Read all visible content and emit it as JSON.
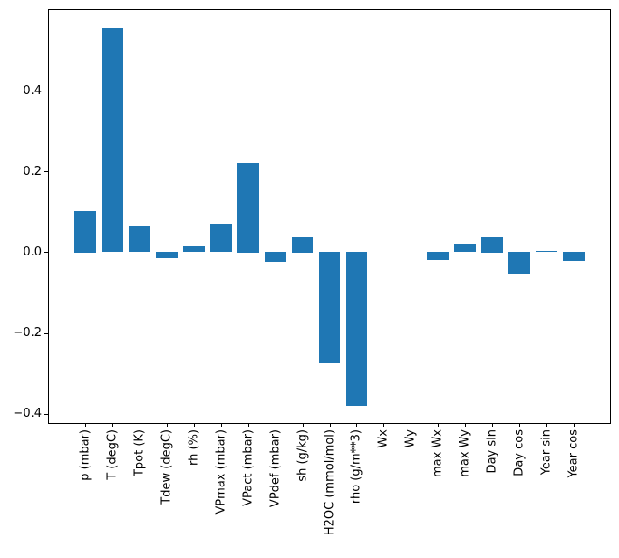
{
  "figure": {
    "background": "#ffffff"
  },
  "chart_data": {
    "type": "bar",
    "title": "",
    "xlabel": "",
    "ylabel": "",
    "categories": [
      "p (mbar)",
      "T (degC)",
      "Tpot (K)",
      "Tdew (degC)",
      "rh (%)",
      "VPmax (mbar)",
      "VPact (mbar)",
      "VPdef (mbar)",
      "sh (g/kg)",
      "H2OC (mmol/mol)",
      "rho (g/m**3)",
      "Wx",
      "Wy",
      "max Wx",
      "max Wy",
      "Day sin",
      "Day cos",
      "Year sin",
      "Year cos"
    ],
    "values": [
      0.102,
      0.555,
      0.066,
      -0.015,
      0.014,
      0.071,
      0.222,
      -0.023,
      0.037,
      -0.275,
      -0.381,
      0.0,
      0.0,
      -0.019,
      0.021,
      0.037,
      -0.055,
      0.003,
      -0.022
    ],
    "bar_color": "#1f77b4",
    "bar_width_units": 0.8,
    "xlim": [
      -1.34,
      19.34
    ],
    "ylim": [
      -0.423,
      0.6
    ],
    "yticks": [
      {
        "value": 0.4,
        "label": "0.4"
      },
      {
        "value": 0.2,
        "label": "0.2"
      },
      {
        "value": 0.0,
        "label": "0.0"
      },
      {
        "value": -0.2,
        "label": "−0.2"
      },
      {
        "value": -0.4,
        "label": "−0.4"
      }
    ],
    "x_tick_rotation": 90,
    "grid": false,
    "legend_position": "none"
  }
}
